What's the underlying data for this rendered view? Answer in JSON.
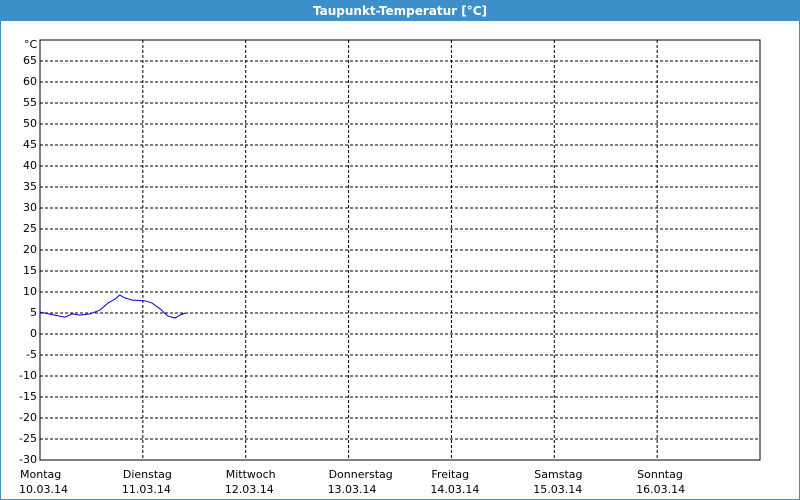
{
  "chart_data": {
    "type": "line",
    "title": "Taupunkt-Temperatur [°C]",
    "y_unit_label": "°C",
    "x": [
      0,
      3.5,
      5.8,
      7.5,
      9.3,
      11.7,
      14,
      15.9,
      17.5,
      18.6,
      19.8,
      21.4,
      24.5,
      26.1,
      28,
      29.8,
      31.5,
      32.6,
      34
    ],
    "series": [
      {
        "name": "Taupunkt",
        "color": "#0000cc",
        "values": [
          5.2,
          4.5,
          4,
          4.8,
          4.5,
          4.8,
          5.7,
          7.4,
          8.3,
          9.3,
          8.6,
          8.1,
          7.9,
          7.4,
          6,
          4.3,
          3.8,
          4.5,
          5
        ]
      }
    ],
    "xlim": [
      0,
      168
    ],
    "xticks": [
      {
        "value": 0,
        "label": "Montag"
      },
      {
        "value": 24,
        "label": "Dienstag"
      },
      {
        "value": 48,
        "label": "Mittwoch"
      },
      {
        "value": 72,
        "label": "Donnerstag"
      },
      {
        "value": 96,
        "label": "Freitag"
      },
      {
        "value": 120,
        "label": "Samstag"
      },
      {
        "value": 144,
        "label": "Sonntag"
      }
    ],
    "xtick_dates": [
      "10.03.14",
      "11.03.14",
      "12.03.14",
      "13.03.14",
      "14.03.14",
      "15.03.14",
      "16.03.14"
    ],
    "ylim": [
      -30,
      70
    ],
    "yticks": [
      -30,
      -25,
      -20,
      -15,
      -10,
      -5,
      0,
      5,
      10,
      15,
      20,
      25,
      30,
      35,
      40,
      45,
      50,
      55,
      60,
      65
    ],
    "grid": true
  }
}
